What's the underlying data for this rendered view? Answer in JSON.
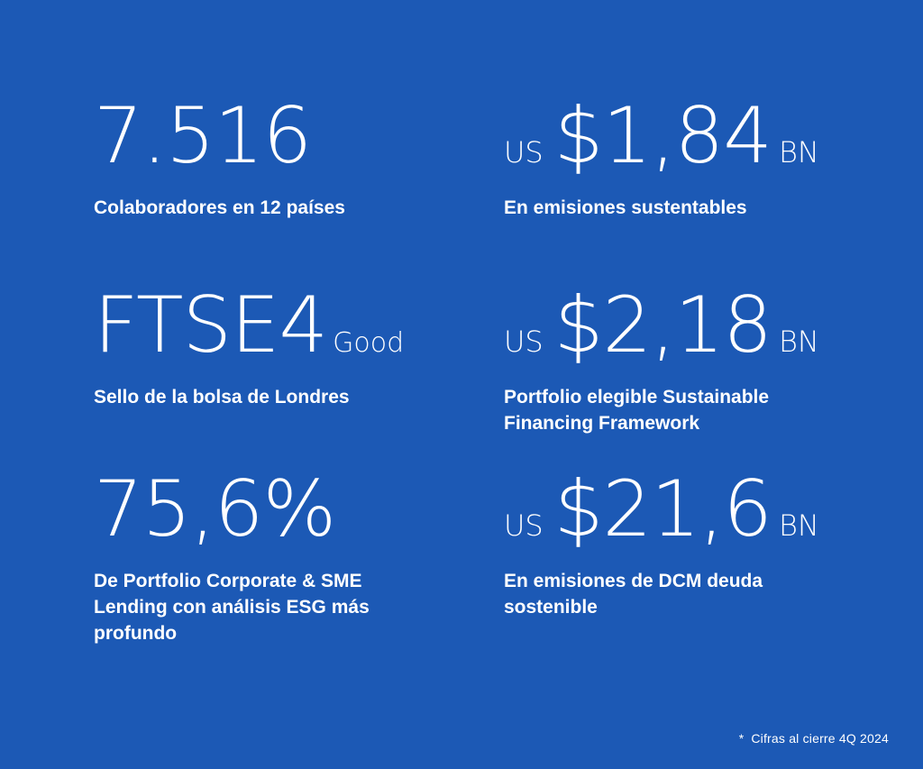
{
  "stats": [
    {
      "value": "7.516",
      "prefix": "",
      "suffix": "",
      "caption": "Colaboradores en 12 países"
    },
    {
      "value": "$1,84",
      "prefix": "US",
      "suffix": "BN",
      "caption": "En emisiones sustentables"
    },
    {
      "value": "FTSE4",
      "prefix": "",
      "suffix": "Good",
      "caption": "Sello de la bolsa de Londres"
    },
    {
      "value": "$2,18",
      "prefix": "US",
      "suffix": "BN",
      "caption": "Portfolio elegible Sustainable Financing Framework"
    },
    {
      "value": "75,6%",
      "prefix": "",
      "suffix": "",
      "caption": "De Portfolio Corporate & SME Lending con análisis ESG más profundo"
    },
    {
      "value": "$21,6",
      "prefix": "US",
      "suffix": "BN",
      "caption": "En emisiones de DCM deuda sostenible"
    }
  ],
  "footnote": {
    "marker": "*",
    "text": "Cifras al cierre 4Q 2024"
  },
  "colors": {
    "background": "#1c59b5",
    "text": "#ffffff"
  }
}
